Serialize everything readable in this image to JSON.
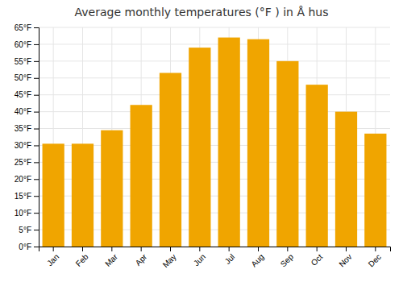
{
  "chart_data": {
    "type": "bar",
    "title": "Average monthly temperatures (°F ) in Å hus",
    "categories": [
      "Jan",
      "Feb",
      "Mar",
      "Apr",
      "May",
      "Jun",
      "Jul",
      "Aug",
      "Sep",
      "Oct",
      "Nov",
      "Dec"
    ],
    "values": [
      30.5,
      30.5,
      34.5,
      42.0,
      51.5,
      59.0,
      62.0,
      61.5,
      55.0,
      48.0,
      40.0,
      33.5
    ],
    "color": "#F0A500",
    "ylim": [
      0,
      65
    ],
    "yticks": [
      {
        "value": 0,
        "label": "0°F"
      },
      {
        "value": 5,
        "label": "5°F"
      },
      {
        "value": 10,
        "label": "10°F"
      },
      {
        "value": 15,
        "label": "15°F"
      },
      {
        "value": 20,
        "label": "20°F"
      },
      {
        "value": 25,
        "label": "25°F"
      },
      {
        "value": 30,
        "label": "30°F"
      },
      {
        "value": 35,
        "label": "35°F"
      },
      {
        "value": 40,
        "label": "40°F"
      },
      {
        "value": 45,
        "label": "45°F"
      },
      {
        "value": 50,
        "label": "50°F"
      },
      {
        "value": 55,
        "label": "55°F"
      },
      {
        "value": 60,
        "label": "60°F"
      },
      {
        "value": 65,
        "label": "65°F"
      }
    ],
    "grid": true
  }
}
